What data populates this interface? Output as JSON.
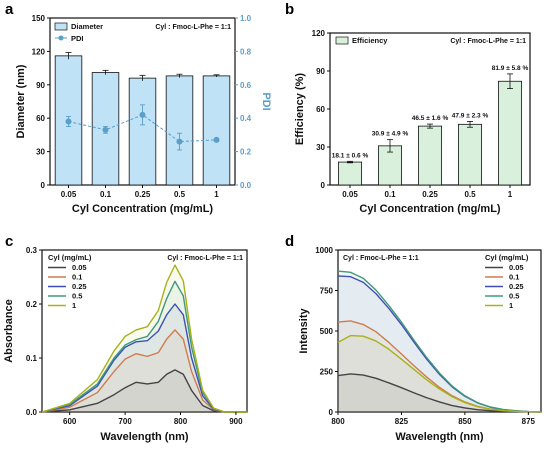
{
  "chart_data": [
    {
      "panel": "a",
      "type": "bar",
      "xlabel": "Cyl Concentration (mg/mL)",
      "ylabel": "Diameter (nm)",
      "ylabel_right": "PDI",
      "annotation": "Cyl : Fmoc-L-Phe = 1:1",
      "categories": [
        "0.05",
        "0.1",
        "0.25",
        "0.5",
        "1"
      ],
      "ylim": [
        0,
        150
      ],
      "yticks": [
        0,
        30,
        60,
        90,
        120,
        150
      ],
      "ylim_right": [
        0.0,
        1.0
      ],
      "yticks_right": [
        "0.0",
        "0.2",
        "0.4",
        "0.6",
        "0.8",
        "1.0"
      ],
      "series": [
        {
          "name": "Diameter",
          "axis": "left",
          "kind": "bar",
          "values": [
            116,
            101,
            96,
            98,
            98
          ],
          "errors": [
            3,
            2,
            2.5,
            1.5,
            1
          ],
          "color": "#bfe2f6"
        },
        {
          "name": "PDI",
          "axis": "right",
          "kind": "line",
          "values": [
            0.38,
            0.33,
            0.42,
            0.26,
            0.27
          ],
          "errors": [
            0.03,
            0.02,
            0.06,
            0.05,
            0.01
          ],
          "color": "#5a9fc9"
        }
      ]
    },
    {
      "panel": "b",
      "type": "bar",
      "xlabel": "Cyl Concentration (mg/mL)",
      "ylabel": "Efficiency (%)",
      "annotation": "Cyl : Fmoc-L-Phe = 1:1",
      "categories": [
        "0.05",
        "0.1",
        "0.25",
        "0.5",
        "1"
      ],
      "ylim": [
        0,
        120
      ],
      "yticks": [
        0,
        30,
        60,
        90,
        120
      ],
      "series": [
        {
          "name": "Efficiency",
          "kind": "bar",
          "values": [
            18.1,
            30.9,
            46.5,
            47.9,
            81.9
          ],
          "errors": [
            0.6,
            4.9,
            1.6,
            2.3,
            5.8
          ],
          "labels": [
            "18.1 ± 0.6 %",
            "30.9 ± 4.9 %",
            "46.5 ± 1.6 %",
            "47.9 ± 2.3 %",
            "81.9 ± 5.8 %"
          ],
          "color": "#d8f0dc"
        }
      ]
    },
    {
      "panel": "c",
      "type": "line",
      "xlabel": "Wavelength (nm)",
      "ylabel": "Absorbance",
      "annotation": "Cyl : Fmoc-L-Phe = 1:1",
      "legend_title": "Cyl (mg/mL)",
      "xlim": [
        550,
        920
      ],
      "xticks": [
        600,
        700,
        800,
        900
      ],
      "ylim": [
        0.0,
        0.3
      ],
      "yticks": [
        "0.0",
        "0.1",
        "0.2",
        "0.3"
      ],
      "x": [
        550,
        600,
        650,
        680,
        700,
        720,
        740,
        760,
        775,
        790,
        805,
        820,
        840,
        860,
        880,
        900,
        920
      ],
      "series": [
        {
          "name": "0.05",
          "color": "#444444",
          "values": [
            0.0,
            0.004,
            0.016,
            0.032,
            0.045,
            0.055,
            0.052,
            0.055,
            0.07,
            0.078,
            0.07,
            0.04,
            0.012,
            0.002,
            0.0,
            0.0,
            0.0
          ]
        },
        {
          "name": "0.1",
          "color": "#d07b4d",
          "values": [
            0.0,
            0.009,
            0.036,
            0.075,
            0.098,
            0.108,
            0.103,
            0.11,
            0.135,
            0.152,
            0.135,
            0.075,
            0.022,
            0.004,
            0.0,
            0.0,
            0.0
          ]
        },
        {
          "name": "0.25",
          "color": "#3f4fb5",
          "values": [
            0.0,
            0.012,
            0.048,
            0.096,
            0.12,
            0.13,
            0.132,
            0.15,
            0.18,
            0.2,
            0.18,
            0.1,
            0.03,
            0.005,
            0.0,
            0.0,
            0.0
          ]
        },
        {
          "name": "0.5",
          "color": "#3f9a7a",
          "values": [
            0.0,
            0.014,
            0.052,
            0.1,
            0.124,
            0.134,
            0.14,
            0.168,
            0.21,
            0.242,
            0.215,
            0.12,
            0.036,
            0.006,
            0.0,
            0.0,
            0.0
          ]
        },
        {
          "name": "1",
          "color": "#a8b219",
          "values": [
            0.0,
            0.016,
            0.06,
            0.113,
            0.14,
            0.152,
            0.158,
            0.188,
            0.24,
            0.272,
            0.243,
            0.135,
            0.04,
            0.007,
            0.0,
            0.0,
            0.0
          ]
        }
      ]
    },
    {
      "panel": "d",
      "type": "line",
      "xlabel": "Wavelength (nm)",
      "ylabel": "Intensity",
      "annotation": "Cyl : Fmoc-L-Phe = 1:1",
      "legend_title": "Cyl (mg/mL)",
      "xlim": [
        800,
        880
      ],
      "xticks": [
        800,
        825,
        850,
        875
      ],
      "ylim": [
        0,
        1000
      ],
      "yticks": [
        0,
        250,
        500,
        750,
        1000
      ],
      "x": [
        800,
        805,
        810,
        815,
        820,
        825,
        830,
        835,
        840,
        845,
        850,
        855,
        860,
        865,
        870,
        875,
        880
      ],
      "series": [
        {
          "name": "0.05",
          "color": "#444444",
          "values": [
            225,
            235,
            228,
            208,
            180,
            150,
            118,
            88,
            62,
            40,
            25,
            14,
            8,
            4,
            2,
            1,
            0
          ]
        },
        {
          "name": "0.1",
          "color": "#d07b4d",
          "values": [
            555,
            562,
            540,
            495,
            430,
            358,
            285,
            215,
            152,
            100,
            62,
            35,
            18,
            9,
            4,
            2,
            1
          ]
        },
        {
          "name": "0.25",
          "color": "#3f4fb5",
          "values": [
            840,
            835,
            800,
            730,
            640,
            540,
            430,
            325,
            232,
            155,
            97,
            56,
            30,
            15,
            7,
            3,
            1
          ]
        },
        {
          "name": "0.5",
          "color": "#3f9a7a",
          "values": [
            870,
            862,
            825,
            752,
            658,
            555,
            442,
            335,
            240,
            160,
            100,
            58,
            31,
            16,
            7,
            3,
            1
          ]
        },
        {
          "name": "1",
          "color": "#a8b219",
          "values": [
            430,
            472,
            468,
            438,
            388,
            326,
            262,
            198,
            142,
            94,
            58,
            33,
            17,
            9,
            4,
            2,
            1
          ]
        }
      ]
    }
  ],
  "colors": {
    "axis": "#111111",
    "pdi_axis": "#5a9fc9"
  }
}
